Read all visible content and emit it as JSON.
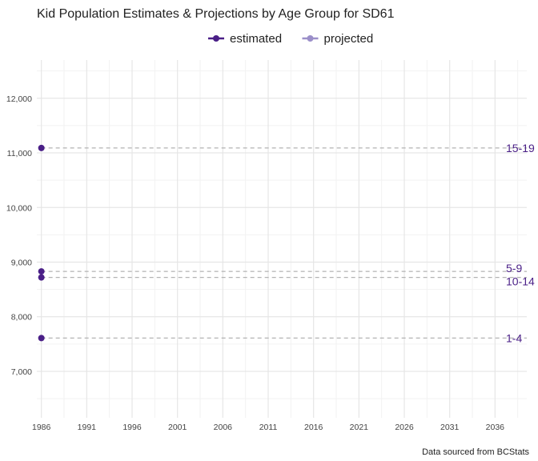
{
  "chart_data": {
    "type": "line",
    "title": "Kid Population Estimates & Projections by Age Group for SD61",
    "caption": "Data sourced from BCStats",
    "xlabel": "",
    "ylabel": "",
    "xlim": [
      1985.5,
      2039.5
    ],
    "ylim": [
      6150,
      12700
    ],
    "x_ticks": [
      1986,
      1991,
      1996,
      2001,
      2006,
      2011,
      2016,
      2021,
      2026,
      2031,
      2036
    ],
    "x_tick_labels": [
      "1986",
      "1991",
      "1996",
      "2001",
      "2006",
      "2011",
      "2016",
      "2021",
      "2026",
      "2031",
      "2036"
    ],
    "y_ticks": [
      7000,
      8000,
      9000,
      10000,
      11000,
      12000
    ],
    "y_tick_labels": [
      "7,000",
      "8,000",
      "9,000",
      "10,000",
      "11,000",
      "12,000"
    ],
    "grid": true,
    "legend": {
      "position": "top",
      "entries": [
        {
          "label": "estimated",
          "color": "#4a1f87"
        },
        {
          "label": "projected",
          "color": "#9b8fc9"
        }
      ]
    },
    "reference_line_end": 2039.5,
    "series": [
      {
        "name": "15-19",
        "x": [
          1986
        ],
        "y": [
          11090
        ],
        "type": "estimated"
      },
      {
        "name": "5-9",
        "x": [
          1986
        ],
        "y": [
          8830
        ],
        "type": "estimated"
      },
      {
        "name": "10-14",
        "x": [
          1986
        ],
        "y": [
          8720
        ],
        "type": "estimated"
      },
      {
        "name": "1-4",
        "x": [
          1986
        ],
        "y": [
          7610
        ],
        "type": "estimated"
      }
    ],
    "colors": {
      "estimated": "#4a1f87",
      "projected": "#9b8fc9",
      "reference": "#b3b3b3",
      "grid_major": "#e6e6e6",
      "grid_minor": "#f2f2f2"
    }
  }
}
